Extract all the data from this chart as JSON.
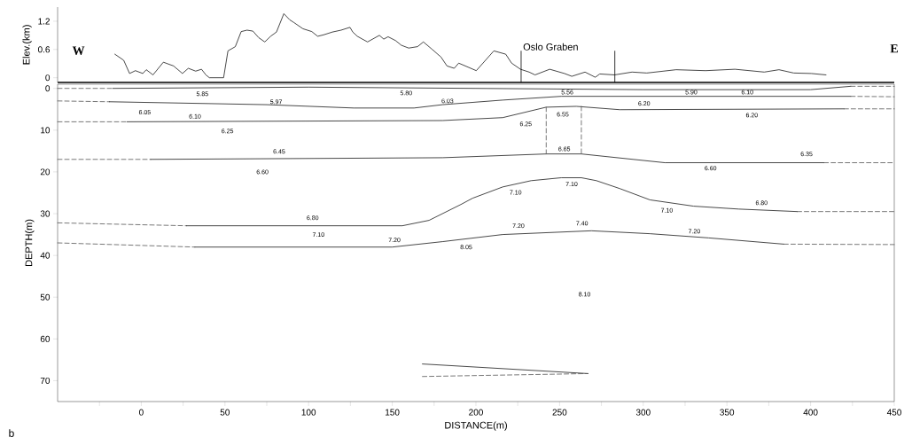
{
  "chart_data": [
    {
      "type": "line",
      "ylabel": "Elev.(km)",
      "color": "#1a1a1a",
      "xlim": [
        -50,
        450
      ],
      "ylim": [
        -0.1,
        1.5
      ],
      "yticks": [
        0,
        0.6,
        1.2
      ],
      "tick_labels": "y",
      "x": [
        -15.8,
        -10.5,
        -7.0,
        -3.5,
        0.9,
        3.0,
        7.0,
        13.2,
        19.3,
        24.6,
        28.1,
        32.5,
        36.0,
        38.6,
        40.7,
        49.2,
        51.8,
        56.2,
        59.7,
        63.2,
        66.7,
        70.2,
        73.8,
        77.3,
        80.8,
        85.2,
        88.7,
        91.3,
        96.6,
        101.9,
        105.4,
        108.9,
        114.2,
        119.4,
        124.7,
        126.4,
        129.1,
        135.2,
        142.3,
        144.9,
        147.5,
        151.9,
        155.4,
        159.8,
        165.1,
        168.6,
        173.9,
        179.1,
        182.7,
        187.0,
        189.7,
        200.2,
        210.7,
        217.8,
        221.3,
        226.6,
        231.8,
        235.3,
        244.1,
        252.9,
        257.3,
        265.2,
        271.3,
        274.0,
        282.8,
        293.3,
        302.1,
        319.6,
        337.2,
        354.8,
        372.3,
        381.1,
        389.9,
        400.4,
        409.2
      ],
      "values": [
        0.5,
        0.37,
        0.09,
        0.15,
        0.09,
        0.17,
        0.06,
        0.33,
        0.25,
        0.09,
        0.2,
        0.14,
        0.18,
        0.06,
        0.0,
        0.0,
        0.57,
        0.66,
        0.98,
        1.01,
        0.99,
        0.85,
        0.76,
        0.88,
        0.97,
        1.36,
        1.23,
        1.17,
        1.04,
        0.98,
        0.88,
        0.91,
        0.97,
        1.01,
        1.07,
        0.97,
        0.88,
        0.76,
        0.9,
        0.82,
        0.87,
        0.79,
        0.69,
        0.63,
        0.66,
        0.76,
        0.6,
        0.44,
        0.25,
        0.2,
        0.31,
        0.15,
        0.57,
        0.5,
        0.31,
        0.18,
        0.12,
        0.06,
        0.18,
        0.09,
        0.03,
        0.12,
        0.01,
        0.08,
        0.06,
        0.12,
        0.1,
        0.17,
        0.15,
        0.18,
        0.12,
        0.17,
        0.1,
        0.09,
        0.06
      ],
      "ref_lines": [
        {
          "axis": "x",
          "value": 227,
          "label": "Oslo Graben"
        },
        {
          "axis": "x",
          "value": 283
        }
      ],
      "annotations": [
        "W",
        "E"
      ]
    },
    {
      "type": "line",
      "xlabel": "DISTANCE(m)",
      "ylabel": "DEPTH(m)",
      "xlim": [
        -50,
        450
      ],
      "ylim": [
        75,
        -1
      ],
      "xticks": [
        {
          "value": -25,
          "label": null
        },
        0,
        {
          "value": 25,
          "label": null
        },
        50,
        {
          "value": 75,
          "label": null
        },
        100,
        {
          "value": 125,
          "label": null
        },
        150,
        {
          "value": 175,
          "label": null
        },
        200,
        {
          "value": 225,
          "label": null
        },
        250,
        {
          "value": 275,
          "label": null
        },
        300,
        {
          "value": 325,
          "label": null
        },
        350,
        {
          "value": 375,
          "label": null
        },
        400,
        {
          "value": 425,
          "label": null
        },
        450
      ],
      "yticks": [
        0,
        10,
        20,
        30,
        40,
        50,
        60,
        70
      ],
      "series": [
        {
          "color": "#555555",
          "line_style": "dashed",
          "x": [
            -50,
            -17
          ],
          "values": [
            0,
            0
          ]
        },
        {
          "color": "#1a1a1a",
          "line_style": "solid",
          "x": [
            -17,
            100,
            200,
            300,
            400,
            424
          ],
          "values": [
            0,
            -0.3,
            0,
            0.3,
            0.3,
            -0.5
          ]
        },
        {
          "color": "#555555",
          "line_style": "dashed",
          "x": [
            424,
            450
          ],
          "values": [
            -0.5,
            -0.5
          ]
        },
        {
          "color": "#555555",
          "line_style": "dashed",
          "x": [
            -50,
            -19
          ],
          "values": [
            3.0,
            3.2
          ]
        },
        {
          "color": "#1a1a1a",
          "line_style": "solid",
          "x": [
            -19,
            75,
            127,
            163,
            180,
            216,
            251,
            424
          ],
          "values": [
            3.2,
            3.9,
            4.7,
            4.7,
            3.9,
            2.8,
            1.9,
            1.9
          ]
        },
        {
          "color": "#555555",
          "line_style": "dashed",
          "x": [
            424,
            450
          ],
          "values": [
            1.9,
            2.0
          ]
        },
        {
          "color": "#555555",
          "line_style": "dashed",
          "x": [
            -50,
            -8.5
          ],
          "values": [
            8.0,
            8.0
          ]
        },
        {
          "color": "#1a1a1a",
          "line_style": "solid",
          "x": [
            -8.5,
            180,
            216,
            242,
            260,
            286,
            420
          ],
          "values": [
            8.0,
            7.7,
            7.0,
            4.5,
            4.3,
            5.1,
            4.9
          ]
        },
        {
          "color": "#555555",
          "line_style": "dashed",
          "x": [
            420,
            450
          ],
          "values": [
            4.9,
            4.9
          ]
        },
        {
          "color": "#555555",
          "line_style": "dashed",
          "x": [
            -50,
            5.6
          ],
          "values": [
            17.0,
            17.0
          ]
        },
        {
          "color": "#1a1a1a",
          "line_style": "solid",
          "x": [
            5.6,
            180,
            242,
            263,
            313,
            408
          ],
          "values": [
            17.0,
            16.6,
            15.7,
            15.7,
            17.8,
            17.8
          ]
        },
        {
          "color": "#555555",
          "line_style": "dashed",
          "x": [
            408,
            450
          ],
          "values": [
            17.8,
            17.8
          ]
        },
        {
          "color": "#555555",
          "line_style": "dashed",
          "x": [
            -50,
            27
          ],
          "values": [
            32.2,
            32.9
          ]
        },
        {
          "color": "#1a1a1a",
          "line_style": "solid",
          "x": [
            27,
            156,
            172,
            191,
            198,
            216,
            233,
            251,
            263,
            272,
            286,
            304,
            330,
            357,
            392
          ],
          "values": [
            32.9,
            32.9,
            31.6,
            27.8,
            26.3,
            23.6,
            22.1,
            21.4,
            21.4,
            22.1,
            24.0,
            26.7,
            28.2,
            28.9,
            29.5
          ]
        },
        {
          "color": "#555555",
          "line_style": "dashed",
          "x": [
            392,
            450
          ],
          "values": [
            29.5,
            29.5
          ]
        },
        {
          "color": "#555555",
          "line_style": "dashed",
          "x": [
            -50,
            32
          ],
          "values": [
            37.0,
            38.0
          ]
        },
        {
          "color": "#1a1a1a",
          "line_style": "solid",
          "x": [
            32,
            150,
            180,
            216,
            269,
            304,
            339,
            384
          ],
          "values": [
            38.0,
            38.0,
            36.7,
            35.0,
            34.1,
            34.8,
            35.8,
            37.3
          ]
        },
        {
          "color": "#555555",
          "line_style": "dashed",
          "x": [
            384,
            450
          ],
          "values": [
            37.3,
            37.4
          ]
        },
        {
          "color": "#555555",
          "line_style": "dashed",
          "x": [
            242,
            242
          ],
          "values": [
            4.5,
            15.7
          ]
        },
        {
          "color": "#555555",
          "line_style": "dashed",
          "x": [
            263,
            263
          ],
          "values": [
            4.3,
            15.7
          ]
        },
        {
          "color": "#1a1a1a",
          "line_style": "solid",
          "x": [
            168,
            267
          ],
          "values": [
            66.0,
            68.3
          ]
        },
        {
          "color": "#555555",
          "line_style": "dashed",
          "x": [
            168,
            267
          ],
          "values": [
            69.0,
            68.3
          ]
        }
      ],
      "annotations": [
        "5.85",
        "5.97",
        "6.05",
        "6.10",
        "6.25",
        "6.45",
        "6.60",
        "6.80",
        "7.10",
        "7.20",
        "5.80",
        "6.03",
        "5.56",
        "5.90",
        "6.10",
        "6.20",
        "6.20",
        "6.25",
        "6.55",
        "6.65",
        "6.35",
        "6.60",
        "7.10",
        "7.10",
        "7.10",
        "6.80",
        "7.20",
        "7.40",
        "7.20",
        "8.05",
        "8.10",
        "b"
      ]
    }
  ]
}
